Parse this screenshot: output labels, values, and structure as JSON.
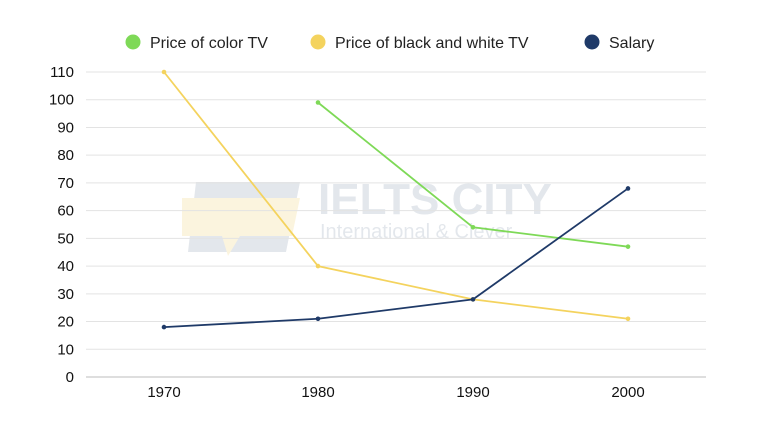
{
  "chart_data": {
    "type": "line",
    "title": "",
    "xlabel": "",
    "ylabel": "",
    "categories": [
      "1970",
      "1980",
      "1990",
      "2000"
    ],
    "ylim": [
      0,
      110
    ],
    "yticks": [
      0,
      10,
      20,
      30,
      40,
      50,
      60,
      70,
      80,
      90,
      100,
      110
    ],
    "grid": true,
    "legend_position": "top-center",
    "series": [
      {
        "name": "Price of color TV",
        "color": "#7ed957",
        "values": [
          null,
          99,
          54,
          47
        ]
      },
      {
        "name": "Price of black and white TV",
        "color": "#f4d35e",
        "values": [
          110,
          40,
          28,
          21
        ]
      },
      {
        "name": "Salary",
        "color": "#1f3a68",
        "values": [
          18,
          21,
          28,
          68
        ]
      }
    ]
  },
  "watermark": {
    "brand": "IELTS CITY",
    "tagline": "International & Clever"
  }
}
